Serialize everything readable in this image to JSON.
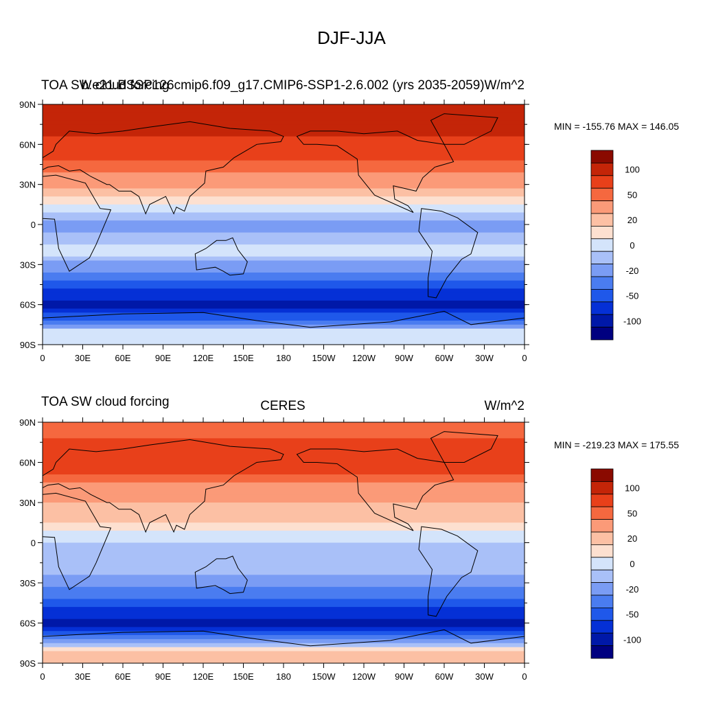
{
  "figure": {
    "main_title": "DJF-JJA"
  },
  "colormap": {
    "levels": [
      "",
      "-100",
      "",
      "-50",
      "",
      "-20",
      "",
      "0",
      "",
      "20",
      "",
      "50",
      "",
      "100",
      ""
    ],
    "colors": [
      "#000080",
      "#0018a8",
      "#0530d6",
      "#1f58ea",
      "#4a7cf0",
      "#7a9cf4",
      "#a9c0f8",
      "#d4e4fb",
      "#fde0d0",
      "#fcc0a4",
      "#fb9a78",
      "#f5683f",
      "#e8401a",
      "#c42508",
      "#8a0a00"
    ]
  },
  "panels": [
    {
      "left_title": "TOA SW cloud forcing",
      "center_title": "b.e21.BSSP126cmip6.f09_g17.CMIP6-SSP1-2.6.002 (yrs 2035-2059)",
      "right_title": "W/m^2",
      "min_max": "MIN = -155.76 MAX = 146.05"
    },
    {
      "left_title": "TOA SW cloud forcing",
      "center_title": "CERES",
      "right_title": "W/m^2",
      "min_max": "MIN = -219.23 MAX = 175.55"
    }
  ],
  "chart_data": [
    {
      "type": "heatmap",
      "title": "DJF-JJA",
      "subtitle": "b.e21.BSSP126cmip6.f09_g17.CMIP6-SSP1-2.6.002 (yrs 2035-2059)",
      "units": "W/m^2",
      "x_ticks": [
        "0",
        "30E",
        "60E",
        "90E",
        "120E",
        "150E",
        "180",
        "150W",
        "120W",
        "90W",
        "60W",
        "30W",
        "0"
      ],
      "y_ticks": [
        "90N",
        "60N",
        "30N",
        "0",
        "30S",
        "60S",
        "90S"
      ],
      "lat_band_means": [
        {
          "lat": 80,
          "value": 85
        },
        {
          "lat": 60,
          "value": 70
        },
        {
          "lat": 40,
          "value": 35
        },
        {
          "lat": 20,
          "value": 10
        },
        {
          "lat": 0,
          "value": -25
        },
        {
          "lat": -20,
          "value": -5
        },
        {
          "lat": -40,
          "value": -45
        },
        {
          "lat": -60,
          "value": -110
        },
        {
          "lat": -80,
          "value": -5
        }
      ],
      "min": -155.76,
      "max": 146.05
    },
    {
      "type": "heatmap",
      "title": "TOA SW cloud forcing",
      "subtitle": "CERES",
      "units": "W/m^2",
      "x_ticks": [
        "0",
        "30E",
        "60E",
        "90E",
        "120E",
        "150E",
        "180",
        "150W",
        "120W",
        "90W",
        "60W",
        "30W",
        "0"
      ],
      "y_ticks": [
        "90N",
        "60N",
        "30N",
        "0",
        "30S",
        "60S",
        "90S"
      ],
      "lat_band_means": [
        {
          "lat": 80,
          "value": 45
        },
        {
          "lat": 60,
          "value": 75
        },
        {
          "lat": 40,
          "value": 25
        },
        {
          "lat": 20,
          "value": 15
        },
        {
          "lat": 0,
          "value": -10
        },
        {
          "lat": -20,
          "value": -15
        },
        {
          "lat": -40,
          "value": -45
        },
        {
          "lat": -60,
          "value": -115
        },
        {
          "lat": -80,
          "value": 10
        }
      ],
      "min": -219.23,
      "max": 175.55
    }
  ]
}
